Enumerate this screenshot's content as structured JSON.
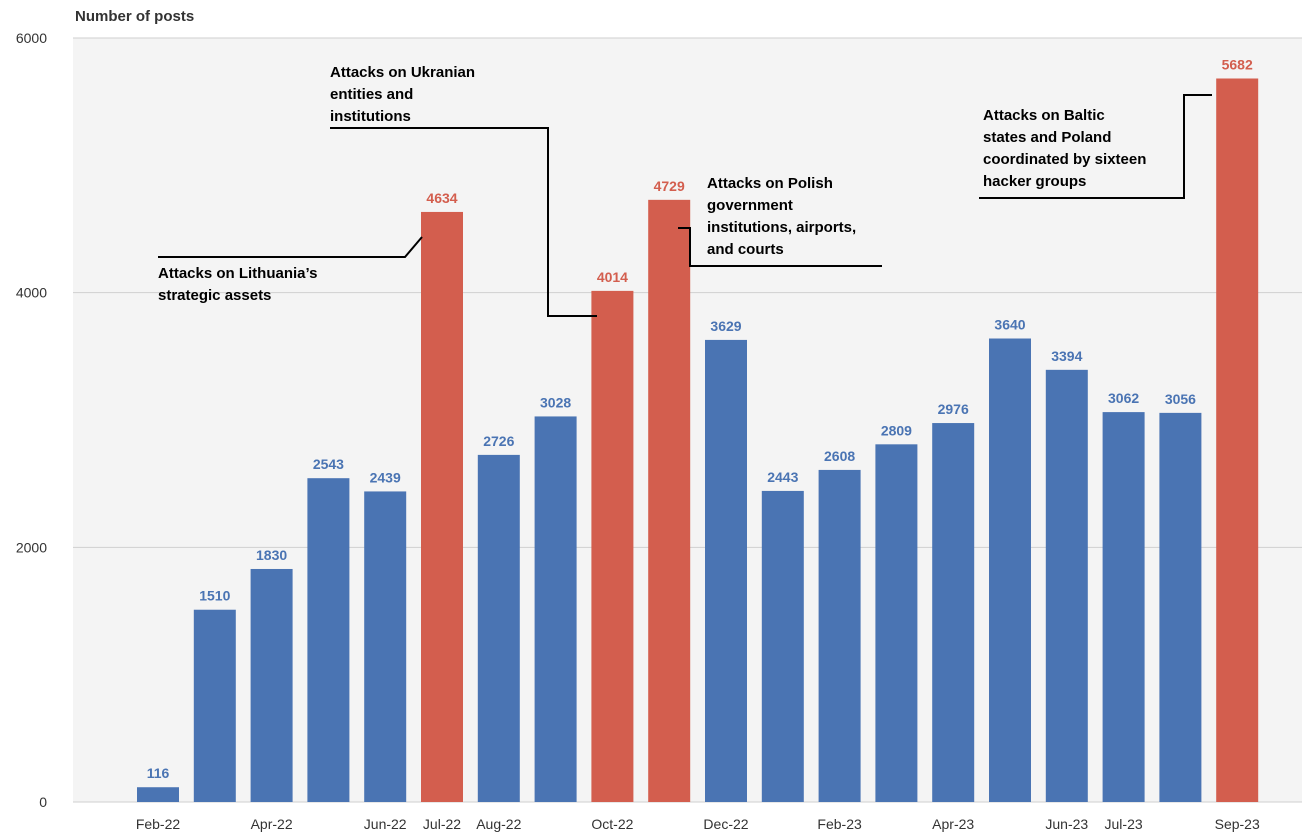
{
  "chart_data": {
    "type": "bar",
    "ylabel": "Number of posts",
    "ylim": [
      0,
      6000
    ],
    "yticks": [
      "0",
      "2000",
      "4000",
      "6000"
    ],
    "grid": true,
    "colors": {
      "normal": "#4a74b3",
      "highlight": "#d35e4e",
      "plot_bg": "#f4f4f4"
    },
    "categories": [
      "Feb-22",
      "Mar-22",
      "Apr-22",
      "May-22",
      "Jun-22",
      "Jul-22",
      "Aug-22",
      "Sep-22",
      "Oct-22",
      "Nov-22",
      "Dec-22",
      "Jan-23",
      "Feb-23",
      "Mar-23",
      "Apr-23",
      "May-23",
      "Jun-23",
      "Jul-23",
      "Aug-23",
      "Sep-23"
    ],
    "values": [
      116,
      1510,
      1830,
      2543,
      2439,
      4634,
      2726,
      3028,
      4014,
      4729,
      3629,
      2443,
      2608,
      2809,
      2976,
      3640,
      3394,
      3062,
      3056,
      5682
    ],
    "highlighted": [
      false,
      false,
      false,
      false,
      false,
      true,
      false,
      false,
      true,
      true,
      false,
      false,
      false,
      false,
      false,
      false,
      false,
      false,
      false,
      true
    ],
    "xtick_labels": [
      "Feb-22",
      "Apr-22",
      "Jun-22",
      "Jul-22",
      "Aug-22",
      "Oct-22",
      "Dec-22",
      "Feb-23",
      "Apr-23",
      "Jun-23",
      "Jul-23",
      "Sep-23"
    ],
    "annotations": [
      {
        "lines": [
          "Attacks on Lithuania’s",
          "strategic assets"
        ],
        "target": "Jul-22"
      },
      {
        "lines": [
          "Attacks on Ukranian",
          "entities and",
          "institutions"
        ],
        "target": "Oct-22"
      },
      {
        "lines": [
          "Attacks on Polish",
          "government",
          "institutions, airports,",
          "and courts"
        ],
        "target": "Nov-22"
      },
      {
        "lines": [
          "Attacks on Baltic",
          "states and Poland",
          "coordinated by sixteen",
          "hacker groups"
        ],
        "target": "Sep-23"
      }
    ]
  }
}
